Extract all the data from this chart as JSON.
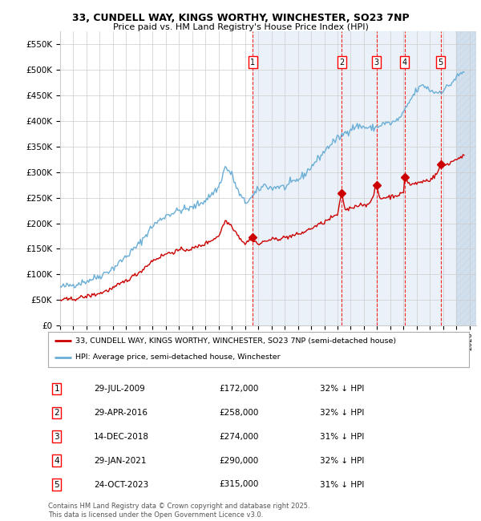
{
  "title_line1": "33, CUNDELL WAY, KINGS WORTHY, WINCHESTER, SO23 7NP",
  "title_line2": "Price paid vs. HM Land Registry's House Price Index (HPI)",
  "yticks": [
    0,
    50000,
    100000,
    150000,
    200000,
    250000,
    300000,
    350000,
    400000,
    450000,
    500000,
    550000
  ],
  "xlim_start": 1995.0,
  "xlim_end": 2026.5,
  "ylim_min": 0,
  "ylim_max": 575000,
  "hpi_color": "#6baed6",
  "price_color": "#cc0000",
  "sale_dates": [
    2009.57,
    2016.33,
    2018.96,
    2021.08,
    2023.81
  ],
  "sale_prices": [
    172000,
    258000,
    274000,
    290000,
    315000
  ],
  "sale_labels": [
    "1",
    "2",
    "3",
    "4",
    "5"
  ],
  "legend_label_price": "33, CUNDELL WAY, KINGS WORTHY, WINCHESTER, SO23 7NP (semi-detached house)",
  "legend_label_hpi": "HPI: Average price, semi-detached house, Winchester",
  "table_entries": [
    {
      "num": "1",
      "date": "29-JUL-2009",
      "price": "£172,000",
      "hpi": "32% ↓ HPI"
    },
    {
      "num": "2",
      "date": "29-APR-2016",
      "price": "£258,000",
      "hpi": "32% ↓ HPI"
    },
    {
      "num": "3",
      "date": "14-DEC-2018",
      "price": "£274,000",
      "hpi": "31% ↓ HPI"
    },
    {
      "num": "4",
      "date": "29-JAN-2021",
      "price": "£290,000",
      "hpi": "32% ↓ HPI"
    },
    {
      "num": "5",
      "date": "24-OCT-2023",
      "price": "£315,000",
      "hpi": "31% ↓ HPI"
    }
  ],
  "footnote": "Contains HM Land Registry data © Crown copyright and database right 2025.\nThis data is licensed under the Open Government Licence v3.0.",
  "background_color": "#ffffff",
  "grid_color": "#cccccc",
  "shade_color": "#dce9f5",
  "hatch_color": "#c8d8e8"
}
